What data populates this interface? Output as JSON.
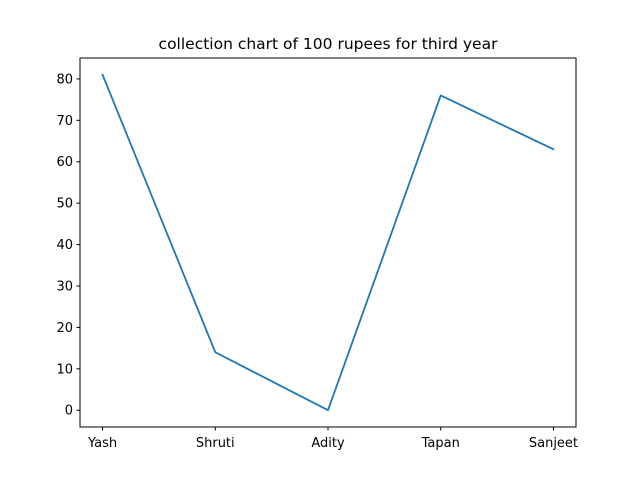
{
  "chart_data": {
    "type": "line",
    "title": "collection chart of 100 rupees for third year",
    "xlabel": "",
    "ylabel": "",
    "categories": [
      "Yash",
      "Shruti",
      "Adity",
      "Tapan",
      "Sanjeet"
    ],
    "series": [
      {
        "values": [
          81,
          14,
          0,
          76,
          63
        ],
        "color": "#1f77b4"
      }
    ],
    "ylim": [
      -4.05,
      85.05
    ],
    "yticks": [
      0,
      10,
      20,
      30,
      40,
      50,
      60,
      70,
      80
    ],
    "grid": false,
    "legend": "none"
  }
}
